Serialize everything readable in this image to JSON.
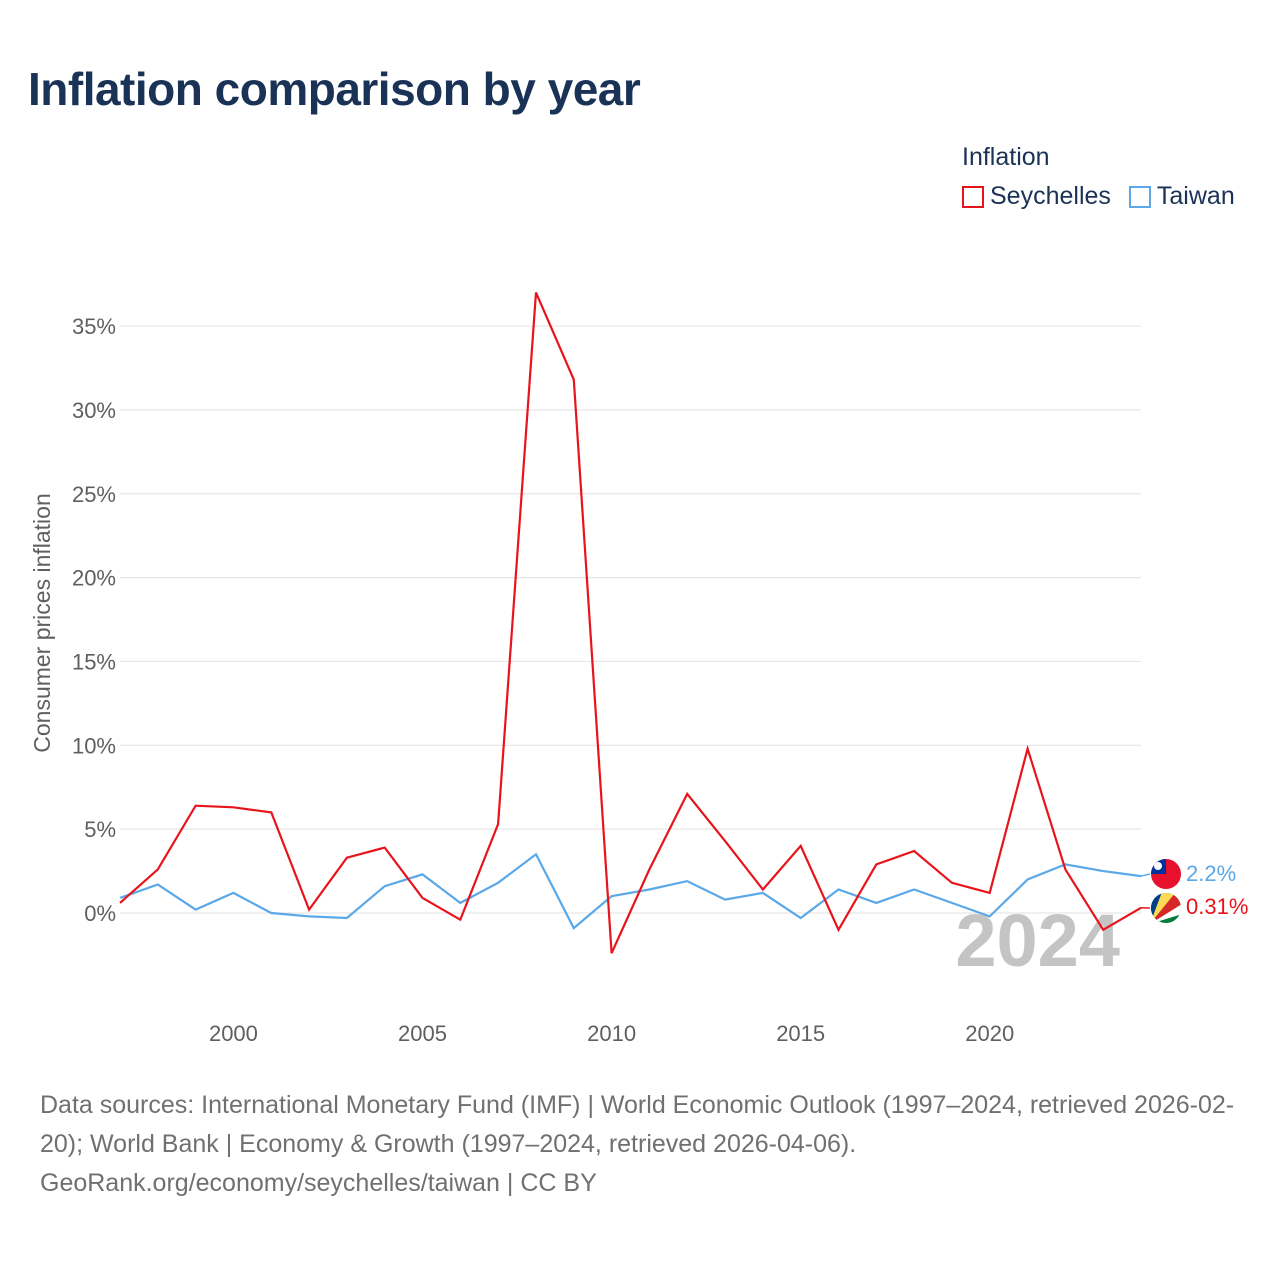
{
  "title": "Inflation comparison by year",
  "legend": {
    "title": "Inflation",
    "items": [
      {
        "label": "Seychelles",
        "color": "#e8141b"
      },
      {
        "label": "Taiwan",
        "color": "#5aa8e8"
      }
    ]
  },
  "footer": {
    "line1": "Data sources: International Monetary Fund (IMF) | World Economic Outlook (1997–2024, retrieved 2026-02-20); World Bank | Economy & Growth (1997–2024, retrieved 2026-04-06).",
    "line2": "GeoRank.org/economy/seychelles/taiwan | CC BY"
  },
  "chart_data": {
    "type": "line",
    "title": "Inflation comparison by year",
    "xlabel": "",
    "ylabel": "Consumer prices inflation",
    "xlim": [
      1997,
      2024
    ],
    "ylim": [
      -5,
      37
    ],
    "x_ticks": [
      2000,
      2005,
      2010,
      2015,
      2020
    ],
    "y_ticks": [
      0,
      5,
      10,
      15,
      20,
      25,
      30,
      35
    ],
    "y_tick_labels": [
      "0%",
      "5%",
      "10%",
      "15%",
      "20%",
      "25%",
      "30%",
      "35%"
    ],
    "x": [
      1997,
      1998,
      1999,
      2000,
      2001,
      2002,
      2003,
      2004,
      2005,
      2006,
      2007,
      2008,
      2009,
      2010,
      2011,
      2012,
      2013,
      2014,
      2015,
      2016,
      2017,
      2018,
      2019,
      2020,
      2021,
      2022,
      2023,
      2024
    ],
    "series": [
      {
        "name": "Seychelles",
        "color": "#e8141b",
        "end_label": "0.31%",
        "flag": "seychelles-flag",
        "values": [
          0.6,
          2.6,
          6.4,
          6.3,
          6.0,
          0.2,
          3.3,
          3.9,
          0.9,
          -0.4,
          5.3,
          37.0,
          31.8,
          -2.4,
          2.6,
          7.1,
          4.3,
          1.4,
          4.0,
          -1.0,
          2.9,
          3.7,
          1.8,
          1.2,
          9.8,
          2.6,
          -1.0,
          0.31
        ]
      },
      {
        "name": "Taiwan",
        "color": "#5aa8e8",
        "end_label": "2.2%",
        "flag": "taiwan-flag",
        "values": [
          0.9,
          1.7,
          0.2,
          1.2,
          0.0,
          -0.2,
          -0.3,
          1.6,
          2.3,
          0.6,
          1.8,
          3.5,
          -0.9,
          1.0,
          1.4,
          1.9,
          0.8,
          1.2,
          -0.3,
          1.4,
          0.6,
          1.4,
          0.6,
          -0.2,
          2.0,
          2.9,
          2.5,
          2.2
        ]
      }
    ],
    "year_watermark": "2024"
  }
}
